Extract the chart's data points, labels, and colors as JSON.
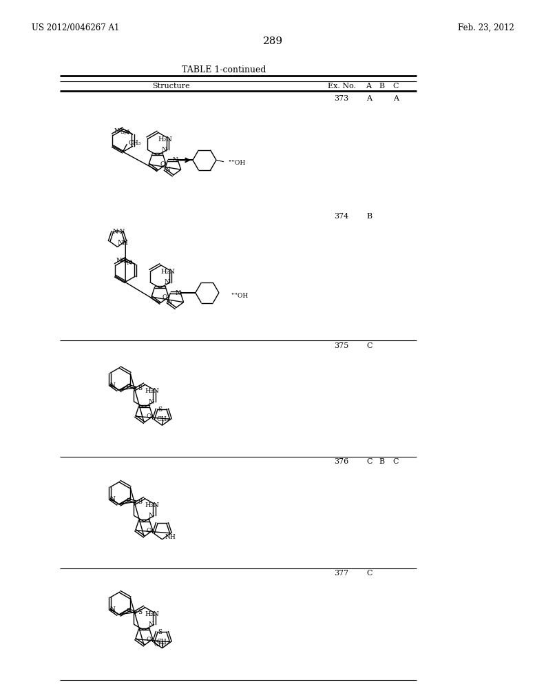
{
  "background_color": "#ffffff",
  "page_number": "289",
  "patent_left": "US 2012/0046267 A1",
  "patent_right": "Feb. 23, 2012",
  "table_title": "TABLE 1-continued",
  "entries": [
    {
      "ex_no": "373",
      "A": "A",
      "B": "",
      "C": "A"
    },
    {
      "ex_no": "374",
      "A": "B",
      "B": "",
      "C": ""
    },
    {
      "ex_no": "375",
      "A": "C",
      "B": "",
      "C": ""
    },
    {
      "ex_no": "376",
      "A": "C",
      "B": "B",
      "C": "C"
    },
    {
      "ex_no": "377",
      "A": "C",
      "B": "",
      "C": ""
    }
  ]
}
